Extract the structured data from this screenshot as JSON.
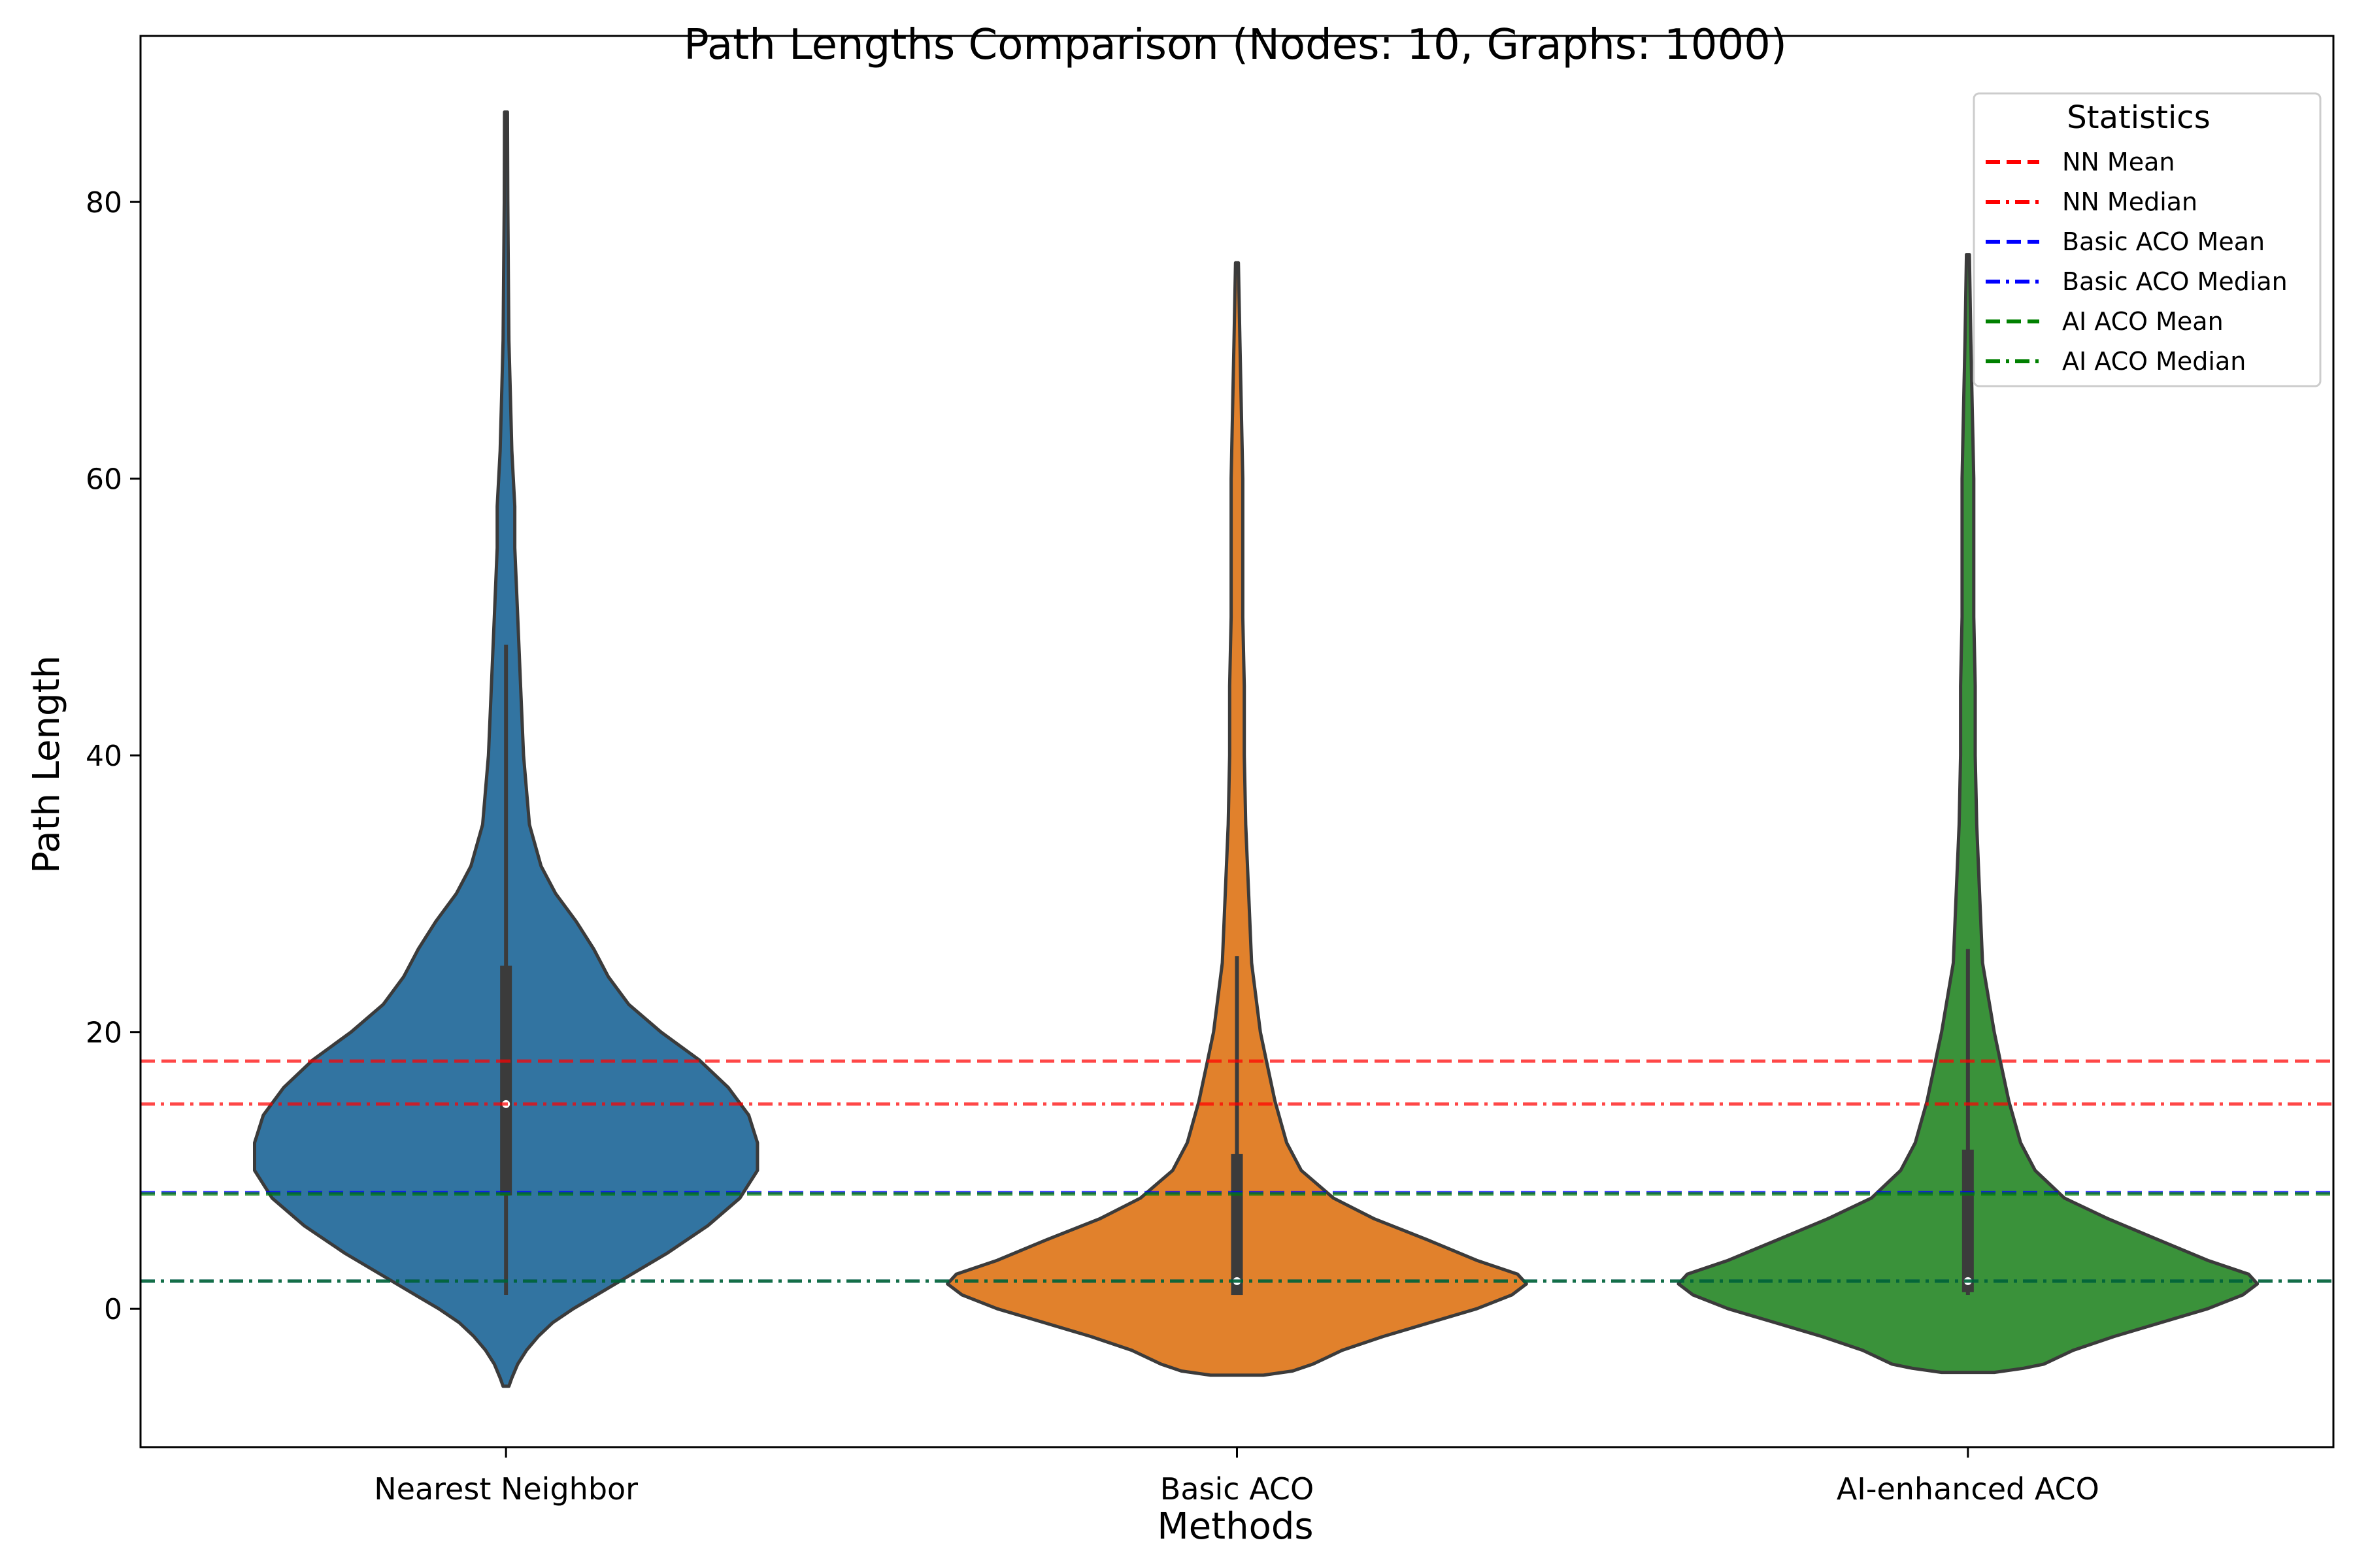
{
  "chart_data": {
    "type": "violin",
    "title": "Path Lengths Comparison (Nodes: 10, Graphs: 1000)",
    "xlabel": "Methods",
    "ylabel": "Path Length",
    "ylim": [
      -10,
      92
    ],
    "yticks": [
      0,
      20,
      40,
      60,
      80
    ],
    "categories": [
      "Nearest Neighbor",
      "Basic ACO",
      "AI-enhanced ACO"
    ],
    "violins": [
      {
        "category": "Nearest Neighbor",
        "color": "#3274a1",
        "median": 14.8,
        "q1": 8.2,
        "q3": 24.8,
        "whisker_low": 1.0,
        "whisker_high": 48.0,
        "profile": [
          [
            -5.6,
            0.01
          ],
          [
            -5.0,
            0.02
          ],
          [
            -4,
            0.04
          ],
          [
            -3,
            0.07
          ],
          [
            -2,
            0.11
          ],
          [
            -1,
            0.16
          ],
          [
            0,
            0.23
          ],
          [
            1,
            0.31
          ],
          [
            2,
            0.39
          ],
          [
            4,
            0.55
          ],
          [
            6,
            0.69
          ],
          [
            8,
            0.8
          ],
          [
            10,
            0.86
          ],
          [
            12,
            0.86
          ],
          [
            14,
            0.83
          ],
          [
            16,
            0.76
          ],
          [
            18,
            0.66
          ],
          [
            20,
            0.53
          ],
          [
            22,
            0.42
          ],
          [
            24,
            0.35
          ],
          [
            26,
            0.3
          ],
          [
            28,
            0.24
          ],
          [
            30,
            0.17
          ],
          [
            32,
            0.12
          ],
          [
            35,
            0.08
          ],
          [
            40,
            0.06
          ],
          [
            45,
            0.05
          ],
          [
            50,
            0.04
          ],
          [
            55,
            0.03
          ],
          [
            58,
            0.03
          ],
          [
            62,
            0.02
          ],
          [
            66,
            0.015
          ],
          [
            70,
            0.01
          ],
          [
            75,
            0.008
          ],
          [
            80,
            0.006
          ],
          [
            86.5,
            0.005
          ]
        ]
      },
      {
        "category": "Basic ACO",
        "color": "#e1812c",
        "median": 2.0,
        "q1": 1.0,
        "q3": 11.2,
        "whisker_low": 1.0,
        "whisker_high": 25.5,
        "profile": [
          [
            -4.8,
            0.09
          ],
          [
            -4.5,
            0.19
          ],
          [
            -4,
            0.26
          ],
          [
            -3,
            0.36
          ],
          [
            -2,
            0.5
          ],
          [
            -1,
            0.66
          ],
          [
            0,
            0.82
          ],
          [
            1,
            0.94
          ],
          [
            1.8,
            0.99
          ],
          [
            2.5,
            0.96
          ],
          [
            3.5,
            0.82
          ],
          [
            5,
            0.65
          ],
          [
            6.5,
            0.47
          ],
          [
            8,
            0.33
          ],
          [
            10,
            0.22
          ],
          [
            12,
            0.17
          ],
          [
            15,
            0.13
          ],
          [
            18,
            0.1
          ],
          [
            20,
            0.08
          ],
          [
            25,
            0.05
          ],
          [
            30,
            0.04
          ],
          [
            35,
            0.03
          ],
          [
            40,
            0.025
          ],
          [
            45,
            0.025
          ],
          [
            50,
            0.02
          ],
          [
            55,
            0.02
          ],
          [
            60,
            0.02
          ],
          [
            65,
            0.015
          ],
          [
            70,
            0.01
          ],
          [
            75.6,
            0.005
          ]
        ]
      },
      {
        "category": "AI-enhanced ACO",
        "color": "#3a923a",
        "median": 2.0,
        "q1": 1.2,
        "q3": 11.5,
        "whisker_low": 1.0,
        "whisker_high": 26.0,
        "profile": [
          [
            -4.6,
            0.09
          ],
          [
            -4.3,
            0.19
          ],
          [
            -4,
            0.26
          ],
          [
            -3,
            0.36
          ],
          [
            -2,
            0.5
          ],
          [
            -1,
            0.66
          ],
          [
            0,
            0.82
          ],
          [
            1,
            0.94
          ],
          [
            1.8,
            0.99
          ],
          [
            2.5,
            0.96
          ],
          [
            3.5,
            0.82
          ],
          [
            5,
            0.65
          ],
          [
            6.5,
            0.48
          ],
          [
            8,
            0.33
          ],
          [
            10,
            0.23
          ],
          [
            12,
            0.18
          ],
          [
            15,
            0.14
          ],
          [
            18,
            0.11
          ],
          [
            20,
            0.09
          ],
          [
            25,
            0.05
          ],
          [
            30,
            0.04
          ],
          [
            35,
            0.03
          ],
          [
            40,
            0.025
          ],
          [
            45,
            0.025
          ],
          [
            50,
            0.02
          ],
          [
            55,
            0.02
          ],
          [
            60,
            0.02
          ],
          [
            65,
            0.015
          ],
          [
            70,
            0.01
          ],
          [
            76.2,
            0.005
          ]
        ]
      }
    ],
    "reference_lines": [
      {
        "label": "NN Mean",
        "value": 17.9,
        "color": "#ff0000",
        "style": "dashed"
      },
      {
        "label": "NN Median",
        "value": 14.8,
        "color": "#ff0000",
        "style": "dashdot"
      },
      {
        "label": "Basic ACO Mean",
        "value": 8.4,
        "color": "#0000ff",
        "style": "dashed"
      },
      {
        "label": "Basic ACO Median",
        "value": 2.0,
        "color": "#0000ff",
        "style": "dashdot"
      },
      {
        "label": "AI ACO Mean",
        "value": 8.3,
        "color": "#008000",
        "style": "dashed"
      },
      {
        "label": "AI ACO Median",
        "value": 2.0,
        "color": "#008000",
        "style": "dashdot"
      }
    ],
    "legend": {
      "title": "Statistics",
      "placement": "top-right"
    },
    "grid": false
  }
}
